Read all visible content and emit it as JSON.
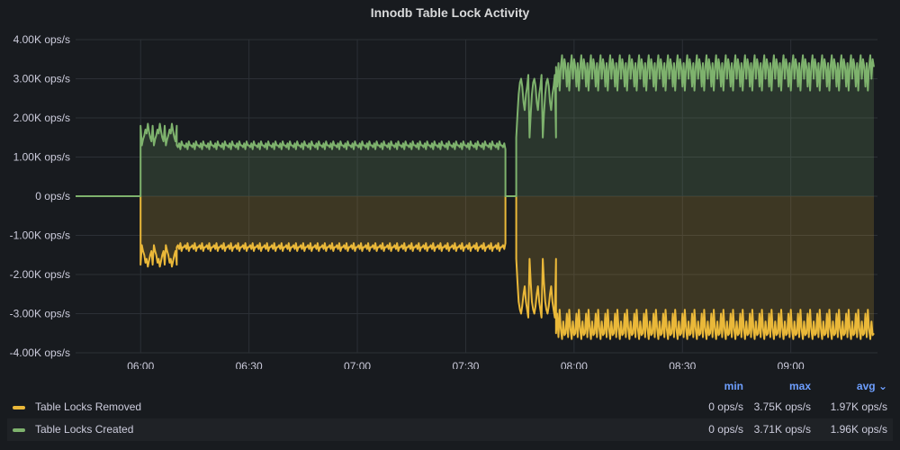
{
  "chart_data": {
    "type": "line",
    "title": "Innodb Table Lock Activity",
    "yunit": "ops/s",
    "ylim": [
      -4000,
      4000
    ],
    "y_ticks": [
      "4.00K ops/s",
      "3.00K ops/s",
      "2.00K ops/s",
      "1.00K ops/s",
      "0 ops/s",
      "-1.00K ops/s",
      "-2.00K ops/s",
      "-3.00K ops/s",
      "-4.00K ops/s"
    ],
    "x_ticks": [
      "06:00",
      "06:30",
      "07:00",
      "07:30",
      "08:00",
      "08:30",
      "09:00"
    ],
    "xlim": [
      "05:42",
      "09:24"
    ],
    "grid": true,
    "legend_placement": "bottom",
    "stats_headers": {
      "min": "min",
      "max": "max",
      "avg": "avg"
    },
    "sort_indicator": "⌄",
    "series": [
      {
        "name": "Table Locks Removed",
        "color": "#eab839",
        "sign": "negative",
        "legend": {
          "min": "0 ops/s",
          "max": "3.75K ops/s",
          "avg": "1.97K ops/s"
        },
        "segments": [
          {
            "from": "05:42",
            "to": "06:00",
            "values": [
              0
            ]
          },
          {
            "from": "06:00",
            "to": "06:10",
            "values": [
              1750,
              1250,
              1400,
              1500,
              1700,
              1600,
              1800,
              1650,
              1500,
              1400
            ]
          },
          {
            "from": "06:10",
            "to": "07:41",
            "values": [
              1300,
              1250,
              1350,
              1200,
              1400,
              1300
            ]
          },
          {
            "from": "07:41",
            "to": "07:44",
            "values": [
              0
            ]
          },
          {
            "from": "07:44",
            "to": "07:55",
            "values": [
              1600,
              2200,
              2700,
              2900,
              3000,
              2800,
              2500,
              2300,
              2700,
              2900,
              3100
            ]
          },
          {
            "from": "07:55",
            "to": "09:23",
            "values": [
              3500,
              3000,
              3600,
              2900,
              3400,
              3650,
              3200,
              3550
            ]
          }
        ]
      },
      {
        "name": "Table Locks Created",
        "color": "#7eb26d",
        "sign": "positive",
        "legend": {
          "min": "0 ops/s",
          "max": "3.71K ops/s",
          "avg": "1.96K ops/s"
        },
        "segments": [
          {
            "from": "05:42",
            "to": "06:00",
            "values": [
              0
            ]
          },
          {
            "from": "06:00",
            "to": "06:10",
            "values": [
              1800,
              1300,
              1450,
              1550,
              1700,
              1600,
              1850,
              1650,
              1500,
              1400
            ]
          },
          {
            "from": "06:10",
            "to": "07:41",
            "values": [
              1300,
              1250,
              1350,
              1200,
              1400,
              1300
            ]
          },
          {
            "from": "07:41",
            "to": "07:44",
            "values": [
              0
            ]
          },
          {
            "from": "07:44",
            "to": "07:55",
            "values": [
              1500,
              2100,
              2600,
              2900,
              3000,
              2800,
              2400,
              2200,
              2600,
              2800,
              3100
            ]
          },
          {
            "from": "07:55",
            "to": "09:23",
            "values": [
              3300,
              2800,
              3400,
              2700,
              3300,
              3600,
              3000,
              3500
            ]
          }
        ]
      }
    ]
  }
}
